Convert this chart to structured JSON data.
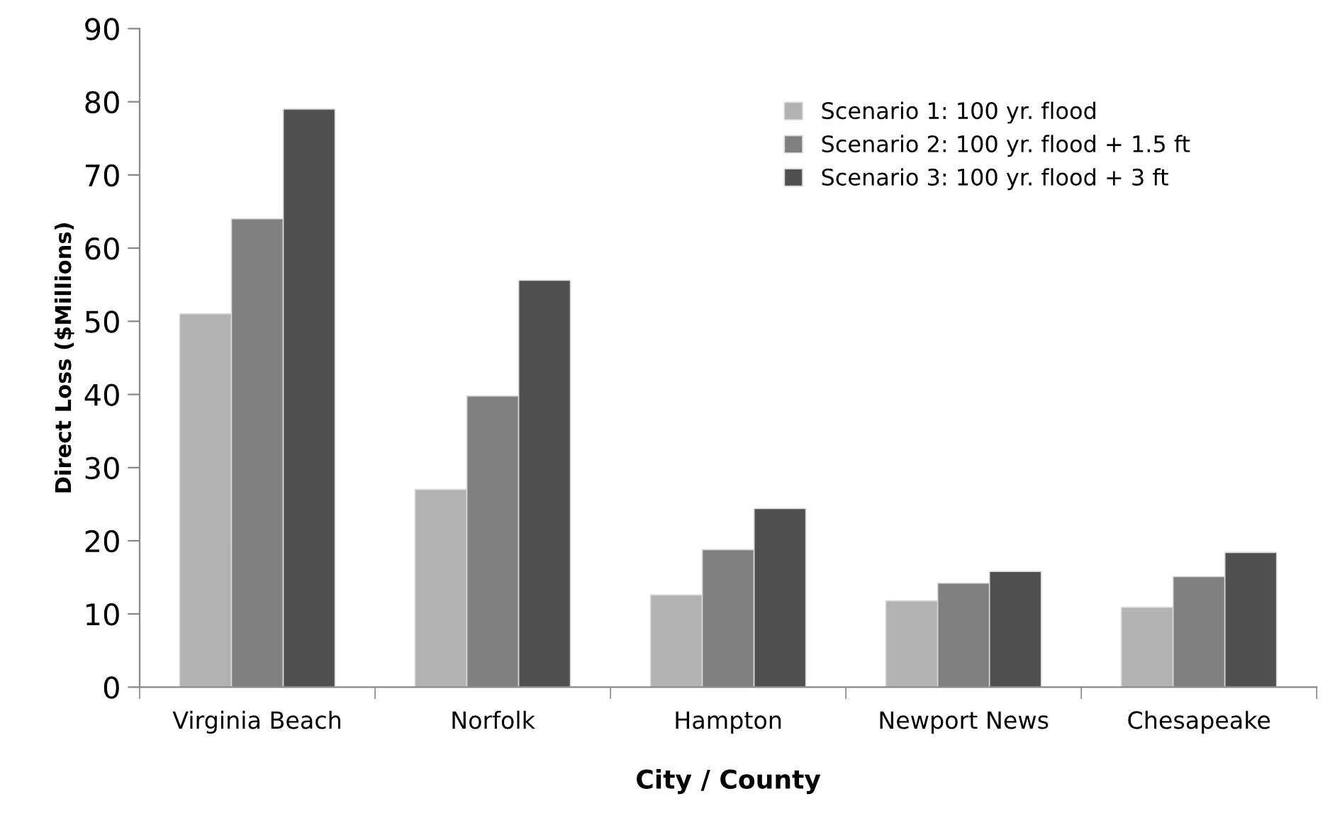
{
  "chart_data": {
    "type": "bar",
    "xlabel": "City / County",
    "ylabel": "Direct Loss ($Millions)",
    "categories": [
      "Virginia Beach",
      "Norfolk",
      "Hampton",
      "Newport News",
      "Chesapeake"
    ],
    "series": [
      {
        "name": "Scenario 1: 100 yr. flood",
        "color": "#b2b2b2",
        "values": [
          51,
          27,
          12.6,
          11.8,
          10.9
        ]
      },
      {
        "name": "Scenario 2: 100 yr. flood + 1.5 ft",
        "color": "#808080",
        "values": [
          64,
          39.8,
          18.8,
          14.2,
          15.1
        ]
      },
      {
        "name": "Scenario 3: 100 yr. flood + 3 ft",
        "color": "#505050",
        "values": [
          79,
          55.6,
          24.4,
          15.8,
          18.4
        ]
      }
    ],
    "ylim": [
      0,
      90
    ],
    "yticks": [
      0,
      10,
      20,
      30,
      40,
      50,
      60,
      70,
      80,
      90
    ],
    "grid": false,
    "legend": "top right"
  }
}
